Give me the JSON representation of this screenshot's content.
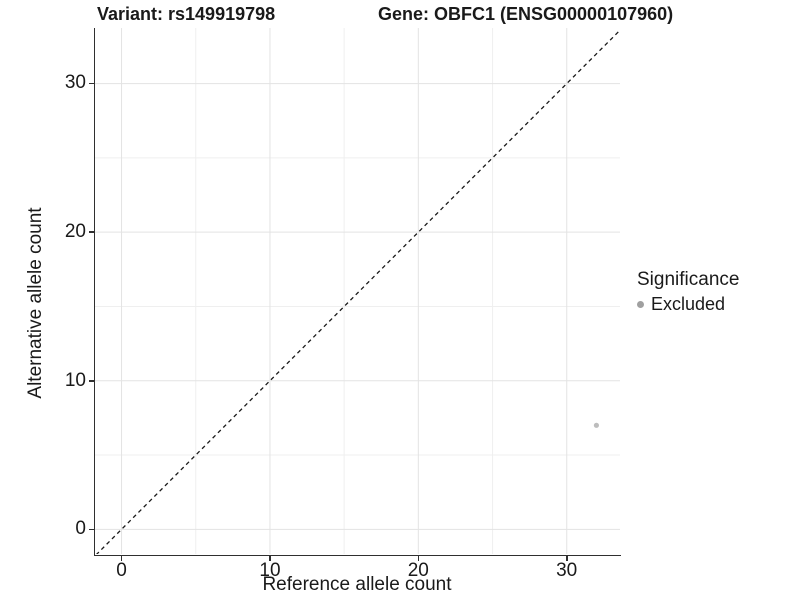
{
  "titles": {
    "variant": "Variant: rs149919798",
    "gene": "Gene: OBFC1 (ENSG00000107960)"
  },
  "axes": {
    "x": {
      "label": "Reference allele count",
      "tick_labels": [
        "0",
        "10",
        "20",
        "30"
      ]
    },
    "y": {
      "label": "Alternative allele count",
      "tick_labels": [
        "0",
        "10",
        "20",
        "30"
      ]
    }
  },
  "legend": {
    "title": "Significance",
    "items": [
      {
        "label": "Excluded",
        "color": "#a0a0a0"
      }
    ]
  },
  "colors": {
    "axis_line": "#2f2f2f",
    "grid_major": "#e3e3e3",
    "grid_minor": "#efefef",
    "text": "#1a1a1a",
    "point": "#bdbdbd",
    "reference_line": "#1a1a1a"
  },
  "chart_data": {
    "type": "scatter",
    "title": "Variant: rs149919798 | Gene: OBFC1 (ENSG00000107960)",
    "xlabel": "Reference allele count",
    "ylabel": "Alternative allele count",
    "xlim": [
      -1.79,
      33.59
    ],
    "ylim": [
      -1.66,
      33.74
    ],
    "x_ticks": [
      0,
      10,
      20,
      30
    ],
    "y_ticks": [
      0,
      10,
      20,
      30
    ],
    "x_minor_ticks": [
      5,
      15,
      25
    ],
    "y_minor_ticks": [
      5,
      15,
      25
    ],
    "grid": "on",
    "legend_position": "right",
    "series": [
      {
        "name": "Excluded",
        "color": "#bdbdbd",
        "point_radius": 2.6,
        "points": [
          {
            "x": 32,
            "y": 7
          }
        ]
      }
    ],
    "reference_line": {
      "style": "dashed",
      "equation": "y = x",
      "color": "#1a1a1a",
      "dash": "4 3.5"
    }
  }
}
